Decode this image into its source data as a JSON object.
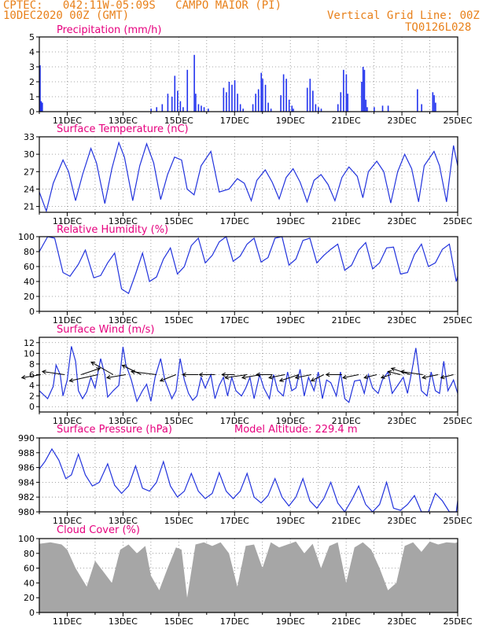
{
  "header": {
    "station": "CPTEC:   042:11W-05:09S   CAMPO MAIOR (PI)",
    "date": "10DEC2020 00Z (GMT)",
    "grid_note": "Vertical Grid Line: 00Z",
    "code": "TQ0126L028"
  },
  "colors": {
    "line": "#2233dd",
    "bar": "#2233ee",
    "cloud": "#a6a6a6",
    "title": "#e6007e",
    "header": "#e8801a",
    "grid": "#888888"
  },
  "chart_data": [
    {
      "id": "precipitation",
      "type": "bar",
      "title": "Precipitation (mm/h)",
      "x_range": [
        10,
        25
      ],
      "ylim": [
        0,
        5
      ],
      "yticks": [
        0,
        1,
        2,
        3,
        4,
        5
      ],
      "grid": true,
      "xtick_labels": true,
      "x": [
        10.02,
        10.06,
        10.1,
        14.0,
        14.2,
        14.4,
        14.6,
        14.75,
        14.85,
        14.95,
        15.05,
        15.15,
        15.3,
        15.55,
        15.6,
        15.7,
        15.8,
        15.9,
        16.05,
        16.6,
        16.7,
        16.8,
        16.9,
        17.0,
        17.1,
        17.2,
        17.3,
        17.65,
        17.75,
        17.85,
        17.95,
        18.0,
        18.1,
        18.2,
        18.3,
        18.65,
        18.75,
        18.85,
        18.95,
        19.05,
        19.1,
        19.6,
        19.7,
        19.8,
        19.9,
        20.0,
        20.1,
        20.7,
        20.8,
        20.9,
        21.0,
        21.05,
        21.55,
        21.6,
        21.65,
        21.7,
        21.75,
        22.0,
        22.3,
        22.5,
        23.55,
        23.7,
        24.1,
        24.15,
        24.2
      ],
      "values": [
        3.1,
        0.7,
        0.6,
        0.2,
        0.3,
        0.5,
        1.2,
        1.0,
        2.4,
        1.4,
        0.7,
        0.3,
        2.8,
        3.8,
        1.2,
        0.5,
        0.4,
        0.3,
        0.2,
        1.6,
        1.3,
        2.0,
        1.8,
        2.1,
        1.2,
        0.5,
        0.2,
        0.5,
        1.2,
        1.5,
        2.6,
        2.2,
        1.8,
        0.6,
        0.2,
        1.1,
        2.5,
        2.2,
        0.8,
        0.4,
        0.2,
        1.6,
        2.2,
        1.4,
        0.5,
        0.3,
        0.2,
        0.5,
        1.3,
        2.8,
        2.5,
        1.2,
        2.0,
        3.0,
        2.8,
        0.8,
        0.3,
        0.3,
        0.4,
        0.4,
        1.5,
        0.5,
        1.3,
        1.1,
        0.6
      ]
    },
    {
      "id": "surface-temperature",
      "type": "line",
      "title": "Surface Temperature (nC)",
      "x_range": [
        10,
        25
      ],
      "ylim": [
        20,
        33
      ],
      "yticks": [
        21,
        24,
        27,
        30,
        33
      ],
      "grid": true,
      "xtick_labels": true,
      "x": [
        10.0,
        10.25,
        10.5,
        10.85,
        11.05,
        11.3,
        11.55,
        11.85,
        12.05,
        12.35,
        12.6,
        12.85,
        13.05,
        13.35,
        13.6,
        13.85,
        14.1,
        14.35,
        14.6,
        14.85,
        15.1,
        15.3,
        15.55,
        15.8,
        16.15,
        16.45,
        16.8,
        17.1,
        17.35,
        17.6,
        17.8,
        18.1,
        18.35,
        18.6,
        18.85,
        19.1,
        19.35,
        19.6,
        19.85,
        20.1,
        20.35,
        20.6,
        20.85,
        21.1,
        21.4,
        21.6,
        21.8,
        22.1,
        22.35,
        22.6,
        22.85,
        23.1,
        23.35,
        23.6,
        23.8,
        24.15,
        24.35,
        24.6,
        24.85,
        25.0
      ],
      "values": [
        23.5,
        20.2,
        25.0,
        29.0,
        27.0,
        22.0,
        26.5,
        31.0,
        28.5,
        21.5,
        27.5,
        32.0,
        29.5,
        22.0,
        28.0,
        31.8,
        28.5,
        22.2,
        26.5,
        29.5,
        29.0,
        24.0,
        23.0,
        28.0,
        30.5,
        23.5,
        24.0,
        25.8,
        25.0,
        22.0,
        25.5,
        27.3,
        25.2,
        22.3,
        26.0,
        27.5,
        25.2,
        21.8,
        25.5,
        26.5,
        24.8,
        22.0,
        26.0,
        27.8,
        26.2,
        22.5,
        27.0,
        28.8,
        27.0,
        21.6,
        27.0,
        30.0,
        27.5,
        21.8,
        28.0,
        30.5,
        28.0,
        21.8,
        31.5,
        28.0
      ]
    },
    {
      "id": "relative-humidity",
      "type": "line",
      "title": "Relative Humidity (%)",
      "x_range": [
        10,
        25
      ],
      "ylim": [
        0,
        100
      ],
      "yticks": [
        0,
        20,
        40,
        60,
        80,
        100
      ],
      "grid": true,
      "xtick_labels": true,
      "x": [
        10.0,
        10.3,
        10.55,
        10.85,
        11.1,
        11.4,
        11.65,
        11.95,
        12.2,
        12.45,
        12.7,
        12.95,
        13.2,
        13.45,
        13.7,
        13.95,
        14.2,
        14.45,
        14.7,
        14.95,
        15.2,
        15.45,
        15.7,
        15.95,
        16.2,
        16.45,
        16.7,
        16.95,
        17.2,
        17.45,
        17.7,
        17.95,
        18.2,
        18.45,
        18.7,
        18.95,
        19.2,
        19.45,
        19.7,
        19.95,
        20.2,
        20.45,
        20.7,
        20.95,
        21.2,
        21.45,
        21.7,
        21.95,
        22.2,
        22.45,
        22.7,
        22.95,
        23.2,
        23.45,
        23.7,
        23.95,
        24.2,
        24.45,
        24.7,
        24.95,
        25.0
      ],
      "values": [
        80,
        100,
        98,
        52,
        47,
        63,
        82,
        45,
        48,
        65,
        78,
        30,
        24,
        50,
        78,
        40,
        46,
        70,
        85,
        50,
        60,
        88,
        98,
        65,
        75,
        93,
        100,
        67,
        74,
        90,
        98,
        66,
        72,
        98,
        100,
        62,
        70,
        95,
        98,
        65,
        75,
        83,
        90,
        55,
        62,
        82,
        92,
        57,
        65,
        85,
        86,
        50,
        52,
        76,
        90,
        60,
        65,
        83,
        90,
        40,
        47
      ]
    },
    {
      "id": "surface-wind",
      "type": "line",
      "title": "Surface Wind (m/s)",
      "x_range": [
        10,
        25
      ],
      "ylim": [
        -1,
        13
      ],
      "yticks": [
        0,
        2,
        4,
        6,
        8,
        10,
        12
      ],
      "grid": true,
      "xtick_labels": true,
      "x": [
        10.0,
        10.1,
        10.3,
        10.5,
        10.6,
        10.75,
        10.85,
        11.0,
        11.15,
        11.3,
        11.4,
        11.55,
        11.7,
        11.85,
        12.0,
        12.2,
        12.35,
        12.45,
        12.65,
        12.85,
        13.0,
        13.1,
        13.3,
        13.5,
        13.7,
        13.85,
        14.0,
        14.15,
        14.35,
        14.5,
        14.75,
        14.9,
        15.05,
        15.2,
        15.35,
        15.5,
        15.65,
        15.8,
        15.95,
        16.15,
        16.3,
        16.45,
        16.6,
        16.75,
        16.9,
        17.05,
        17.25,
        17.4,
        17.55,
        17.7,
        17.9,
        18.05,
        18.25,
        18.4,
        18.55,
        18.75,
        18.9,
        19.05,
        19.2,
        19.35,
        19.5,
        19.65,
        19.85,
        20.0,
        20.15,
        20.3,
        20.45,
        20.65,
        20.8,
        20.95,
        21.1,
        21.3,
        21.5,
        21.65,
        21.8,
        21.95,
        22.15,
        22.3,
        22.5,
        22.65,
        22.85,
        23.05,
        23.2,
        23.35,
        23.5,
        23.7,
        23.9,
        24.05,
        24.2,
        24.35,
        24.5,
        24.65,
        24.85,
        25.0
      ],
      "values": [
        3.0,
        2.5,
        1.5,
        3.8,
        7.8,
        6.0,
        2.0,
        5.0,
        11.3,
        8.5,
        3.0,
        1.5,
        2.8,
        5.5,
        3.5,
        9.0,
        6.0,
        1.8,
        3.0,
        4.0,
        11.2,
        8.0,
        5.0,
        1.0,
        3.0,
        4.2,
        1.0,
        5.5,
        9.0,
        5.0,
        1.5,
        3.0,
        9.0,
        5.0,
        2.5,
        1.2,
        2.0,
        5.5,
        3.5,
        6.0,
        1.5,
        4.0,
        5.5,
        2.0,
        5.5,
        3.0,
        2.0,
        3.5,
        5.5,
        1.5,
        6.0,
        3.5,
        1.5,
        6.0,
        3.0,
        2.0,
        6.5,
        3.0,
        3.5,
        7.0,
        2.0,
        5.5,
        3.0,
        6.5,
        1.5,
        5.0,
        4.5,
        2.0,
        6.5,
        1.5,
        0.8,
        4.8,
        5.0,
        2.5,
        6.0,
        3.5,
        2.5,
        5.0,
        6.5,
        2.5,
        4.0,
        5.5,
        2.5,
        6.5,
        11.0,
        3.0,
        2.0,
        6.5,
        3.0,
        2.5,
        8.5,
        3.0,
        5.0,
        2.5
      ],
      "arrows": {
        "x": [
          10.05,
          10.9,
          11.5,
          12.1,
          12.65,
          13.1,
          13.65,
          14.2,
          14.9,
          15.7,
          16.3,
          17.0,
          17.45,
          17.95,
          18.35,
          18.8,
          19.3,
          19.75,
          20.2,
          20.85,
          21.45,
          22.1,
          22.6,
          22.95,
          23.3,
          23.75,
          24.3,
          24.85
        ],
        "u": [
          -6,
          -7,
          6,
          -9,
          -7,
          -6,
          -6,
          -8,
          -5,
          -5,
          -5,
          -4,
          -7,
          -6,
          -5,
          -5,
          -6,
          -5,
          -4,
          -5,
          -5,
          -4,
          -3,
          -4,
          -6,
          -7,
          -5,
          -4
        ],
        "v": [
          -1,
          1,
          2,
          -2,
          4,
          -1,
          3,
          1,
          -2,
          0,
          0,
          0,
          -1,
          -1,
          0,
          -1,
          -2,
          -1,
          -2,
          0,
          -1,
          -1,
          -1,
          1,
          2,
          1,
          -1,
          -1
        ]
      }
    },
    {
      "id": "surface-pressure",
      "type": "line",
      "title": "Surface Pressure (hPa)",
      "annotation": "Model Altitude: 229.4 m",
      "x_range": [
        10,
        25
      ],
      "ylim": [
        980,
        990
      ],
      "yticks": [
        980,
        982,
        984,
        986,
        988,
        990
      ],
      "grid": true,
      "xtick_labels": true,
      "x": [
        10.0,
        10.2,
        10.45,
        10.7,
        10.95,
        11.15,
        11.4,
        11.65,
        11.9,
        12.15,
        12.45,
        12.7,
        12.95,
        13.2,
        13.45,
        13.7,
        13.95,
        14.2,
        14.45,
        14.7,
        14.95,
        15.2,
        15.45,
        15.7,
        15.95,
        16.2,
        16.45,
        16.7,
        16.95,
        17.2,
        17.45,
        17.7,
        17.95,
        18.2,
        18.45,
        18.7,
        18.95,
        19.2,
        19.45,
        19.7,
        19.95,
        20.2,
        20.45,
        20.7,
        20.95,
        21.2,
        21.45,
        21.7,
        21.95,
        22.2,
        22.45,
        22.7,
        22.95,
        23.2,
        23.45,
        23.7,
        23.95,
        24.2,
        24.45,
        24.7,
        24.95,
        25.0
      ],
      "values": [
        985.8,
        986.8,
        988.5,
        987.0,
        984.5,
        985.0,
        987.8,
        985.0,
        983.5,
        984.0,
        986.5,
        983.6,
        982.5,
        983.5,
        986.2,
        983.2,
        982.8,
        984.0,
        986.8,
        983.5,
        982.0,
        982.8,
        985.2,
        982.8,
        981.8,
        982.5,
        985.3,
        982.8,
        981.8,
        982.8,
        985.2,
        982.0,
        981.2,
        982.2,
        984.5,
        982.0,
        980.8,
        982.0,
        984.5,
        981.5,
        980.5,
        981.8,
        984.0,
        981.2,
        980.0,
        981.6,
        983.5,
        981.0,
        980.0,
        981.0,
        984.0,
        980.5,
        980.2,
        981.0,
        982.2,
        980.0,
        979.5,
        982.5,
        981.5,
        979.2,
        980.0,
        981.5
      ]
    },
    {
      "id": "cloud-cover",
      "type": "area",
      "title": "Cloud Cover (%)",
      "x_range": [
        10,
        25
      ],
      "ylim": [
        0,
        100
      ],
      "yticks": [
        0,
        20,
        40,
        60,
        80,
        100
      ],
      "grid": true,
      "xtick_labels": true,
      "x": [
        10.0,
        10.4,
        10.8,
        11.0,
        11.3,
        11.7,
        12.0,
        12.3,
        12.6,
        12.9,
        13.2,
        13.5,
        13.8,
        14.0,
        14.3,
        14.6,
        14.9,
        15.1,
        15.3,
        15.6,
        15.9,
        16.2,
        16.5,
        16.8,
        17.1,
        17.4,
        17.7,
        18.0,
        18.3,
        18.6,
        18.9,
        19.2,
        19.5,
        19.8,
        20.1,
        20.4,
        20.7,
        21.0,
        21.3,
        21.6,
        21.9,
        22.2,
        22.5,
        22.8,
        23.1,
        23.4,
        23.7,
        24.0,
        24.3,
        24.6,
        24.9,
        25.0
      ],
      "values": [
        93,
        95,
        92,
        85,
        60,
        35,
        70,
        55,
        40,
        85,
        92,
        80,
        90,
        50,
        30,
        60,
        88,
        85,
        20,
        92,
        95,
        90,
        95,
        80,
        35,
        90,
        92,
        60,
        95,
        88,
        92,
        96,
        80,
        93,
        60,
        90,
        95,
        40,
        88,
        95,
        85,
        60,
        30,
        40,
        90,
        95,
        82,
        96,
        92,
        95,
        94,
        95
      ]
    }
  ],
  "xtick_labels": [
    "11DEC",
    "13DEC",
    "15DEC",
    "17DEC",
    "19DEC",
    "21DEC",
    "23DEC",
    "25DEC"
  ]
}
